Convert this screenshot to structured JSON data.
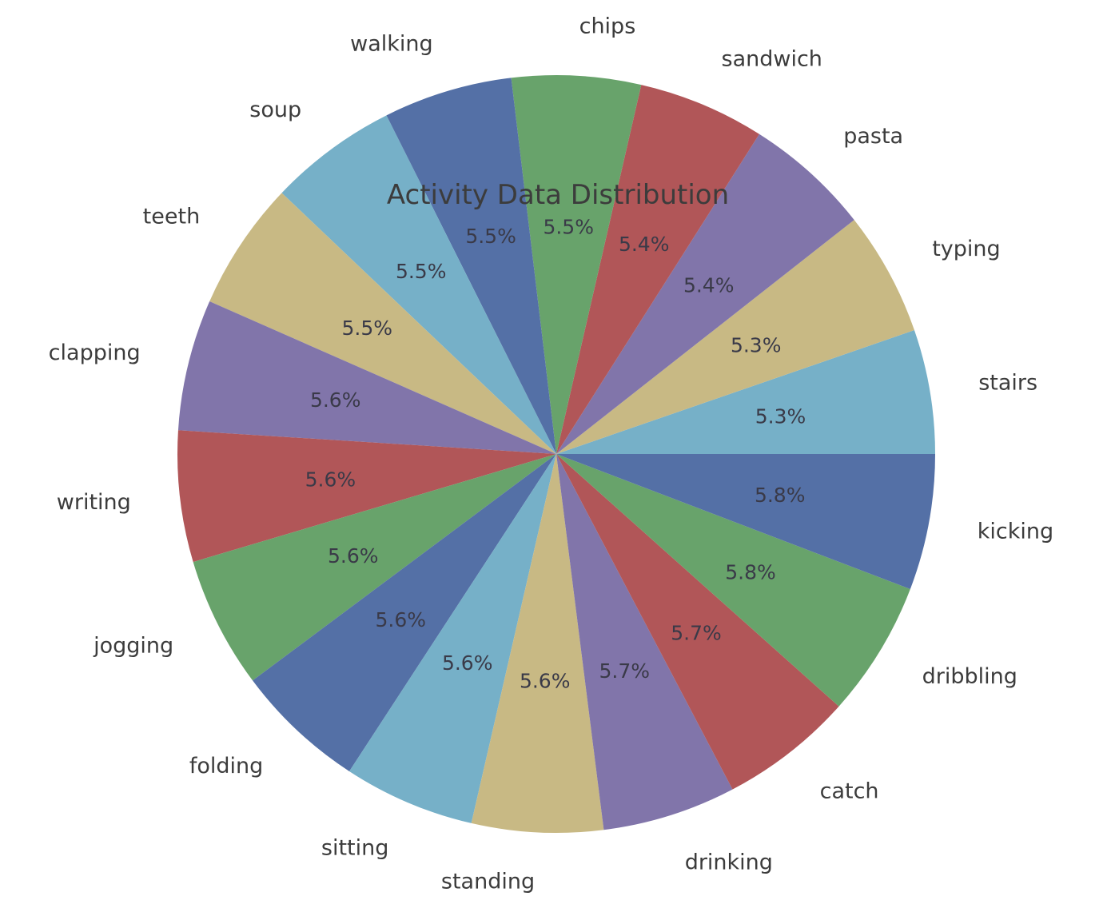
{
  "chart_data": {
    "type": "pie",
    "title": "Activity Data Distribution",
    "start_angle_deg": 0,
    "direction": "counterclockwise",
    "slices": [
      {
        "label": "stairs",
        "value": 5.3,
        "pct_text": "5.3%",
        "color": "#76b0c8"
      },
      {
        "label": "typing",
        "value": 5.3,
        "pct_text": "5.3%",
        "color": "#c8b984"
      },
      {
        "label": "pasta",
        "value": 5.4,
        "pct_text": "5.4%",
        "color": "#8175aa"
      },
      {
        "label": "sandwich",
        "value": 5.4,
        "pct_text": "5.4%",
        "color": "#b15658"
      },
      {
        "label": "chips",
        "value": 5.5,
        "pct_text": "5.5%",
        "color": "#68a36b"
      },
      {
        "label": "walking",
        "value": 5.5,
        "pct_text": "5.5%",
        "color": "#5470a6"
      },
      {
        "label": "soup",
        "value": 5.5,
        "pct_text": "5.5%",
        "color": "#76b0c8"
      },
      {
        "label": "teeth",
        "value": 5.5,
        "pct_text": "5.5%",
        "color": "#c8b984"
      },
      {
        "label": "clapping",
        "value": 5.6,
        "pct_text": "5.6%",
        "color": "#8175aa"
      },
      {
        "label": "writing",
        "value": 5.6,
        "pct_text": "5.6%",
        "color": "#b15658"
      },
      {
        "label": "jogging",
        "value": 5.6,
        "pct_text": "5.6%",
        "color": "#68a36b"
      },
      {
        "label": "folding",
        "value": 5.6,
        "pct_text": "5.6%",
        "color": "#5470a6"
      },
      {
        "label": "sitting",
        "value": 5.6,
        "pct_text": "5.6%",
        "color": "#76b0c8"
      },
      {
        "label": "standing",
        "value": 5.6,
        "pct_text": "5.6%",
        "color": "#c8b984"
      },
      {
        "label": "drinking",
        "value": 5.7,
        "pct_text": "5.7%",
        "color": "#8175aa"
      },
      {
        "label": "catch",
        "value": 5.7,
        "pct_text": "5.7%",
        "color": "#b15658"
      },
      {
        "label": "dribbling",
        "value": 5.8,
        "pct_text": "5.8%",
        "color": "#68a36b"
      },
      {
        "label": "kicking",
        "value": 5.8,
        "pct_text": "5.8%",
        "color": "#5470a6"
      }
    ]
  }
}
